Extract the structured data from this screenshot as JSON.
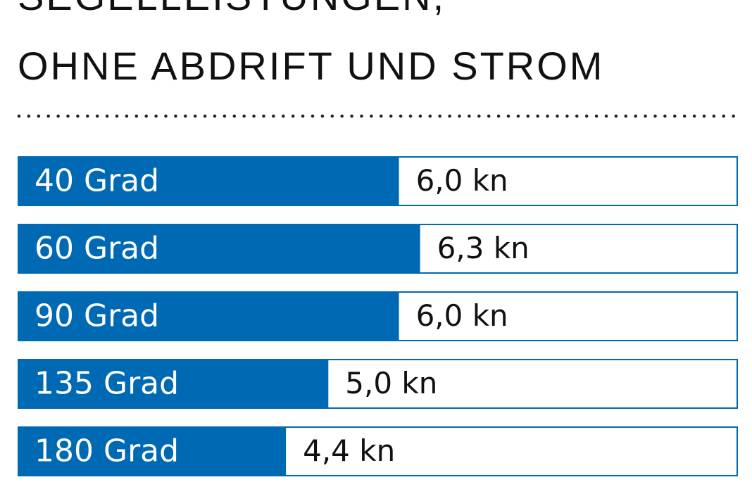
{
  "chart_data": {
    "type": "bar",
    "orientation": "horizontal",
    "title": "SEGELLEISTUNGEN,",
    "subtitle": "OHNE ABDRIFT UND STROM",
    "categories": [
      "40 Grad",
      "60 Grad",
      "90 Grad",
      "135 Grad",
      "180 Grad"
    ],
    "values": [
      6.0,
      6.3,
      6.0,
      5.0,
      4.4
    ],
    "value_labels": [
      "6,0 kn",
      "6,3 kn",
      "6,0 kn",
      "5,0 kn",
      "4,4 kn"
    ],
    "color": "#0069b4",
    "xlim": [
      0.6,
      10.8
    ]
  }
}
